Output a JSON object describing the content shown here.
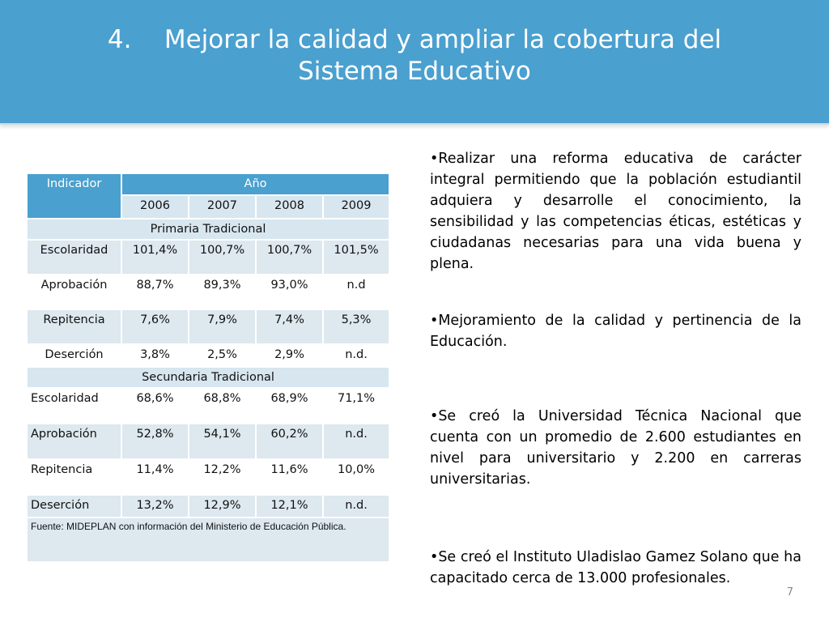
{
  "title": {
    "number": "4.",
    "line1": "Mejorar la calidad y ampliar la cobertura del",
    "line2": "Sistema Educativo"
  },
  "table": {
    "indicator_header": "Indicador",
    "year_header": "Año",
    "years": [
      "2006",
      "2007",
      "2008",
      "2009"
    ],
    "sections": [
      {
        "name": "Primaria Tradicional",
        "rows": [
          {
            "label": "Escolaridad",
            "values": [
              "101,4%",
              "100,7%",
              "100,7%",
              "101,5%"
            ]
          },
          {
            "label": "Aprobación",
            "values": [
              "88,7%",
              "89,3%",
              "93,0%",
              "n.d"
            ]
          },
          {
            "label": "Repitencia",
            "values": [
              "7,6%",
              "7,9%",
              "7,4%",
              "5,3%"
            ]
          },
          {
            "label": "Deserción",
            "values": [
              "3,8%",
              "2,5%",
              "2,9%",
              "n.d."
            ]
          }
        ]
      },
      {
        "name": "Secundaria Tradicional",
        "rows": [
          {
            "label": "Escolaridad",
            "values": [
              "68,6%",
              "68,8%",
              "68,9%",
              "71,1%"
            ]
          },
          {
            "label": "Aprobación",
            "values": [
              "52,8%",
              "54,1%",
              "60,2%",
              "n.d."
            ]
          },
          {
            "label": "Repitencia",
            "values": [
              "11,4%",
              "12,2%",
              "11,6%",
              "10,0%"
            ]
          },
          {
            "label": "Deserción",
            "values": [
              "13,2%",
              "12,9%",
              "12,1%",
              "n.d."
            ]
          }
        ]
      }
    ],
    "source": "Fuente:  MIDEPLAN con información del Ministerio de Educación Pública."
  },
  "bullets": [
    "•Realizar una reforma educativa de carácter integral permitiendo que la población estudiantil adquiera y desarrolle el conocimiento, la sensibilidad y las competencias éticas, estéticas y ciudadanas necesarias para una vida buena y plena.",
    "•Mejoramiento de la calidad y pertinencia de la Educación.",
    "•Se creó la Universidad Técnica Nacional que cuenta con un promedio de 2.600 estudiantes en nivel para universitario y 2.200 en carreras universitarias.",
    "•Se creó el Instituto Uladislao Gamez Solano que ha capacitado cerca de 13.000 profesionales."
  ],
  "page_number": "7",
  "colors": {
    "header_blue": "#4aa0cf",
    "table_light": "#dde8ef",
    "table_header_light": "#d7e6ef"
  }
}
